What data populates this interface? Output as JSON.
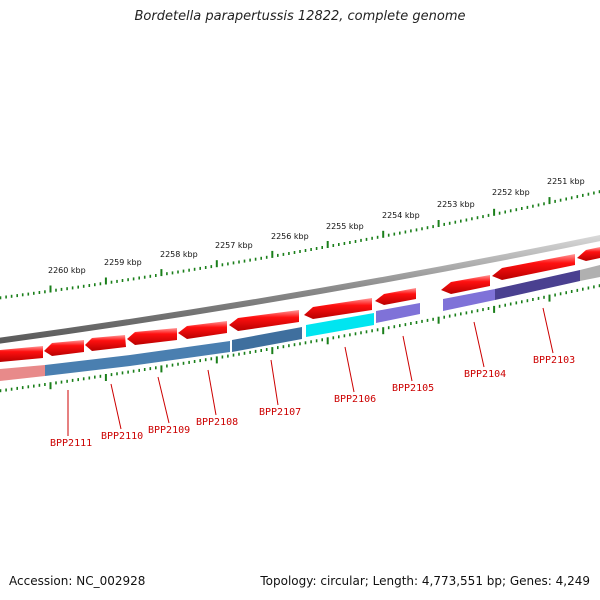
{
  "title": "Bordetella parapertussis 12822, complete genome",
  "accession": "Accession: NC_002928",
  "summary": "Topology: circular; Length: 4,773,551 bp; Genes: 4,249",
  "colors": {
    "backbone": "#8a8a8a",
    "forward_gene": "#e50000",
    "tick": "#1a7f1a",
    "gene_label": "#cc0000",
    "cog_steel": "#4a7fb0",
    "cog_cyan": "#00e5f0",
    "cog_violet": "#7f72d8",
    "cog_indigo": "#4a4090",
    "cog_pink": "#e88a8a",
    "cog_grey": "#b0b0b0"
  },
  "kbp_labels": [
    "2260 kbp",
    "2259 kbp",
    "2258 kbp",
    "2257 kbp",
    "2256 kbp",
    "2255 kbp",
    "2254 kbp",
    "2253 kbp",
    "2252 kbp",
    "2251 kbp"
  ],
  "genes": [
    "BPP2111",
    "BPP2110",
    "BPP2109",
    "BPP2108",
    "BPP2107",
    "BPP2106",
    "BPP2105",
    "BPP2104",
    "BPP2103"
  ]
}
